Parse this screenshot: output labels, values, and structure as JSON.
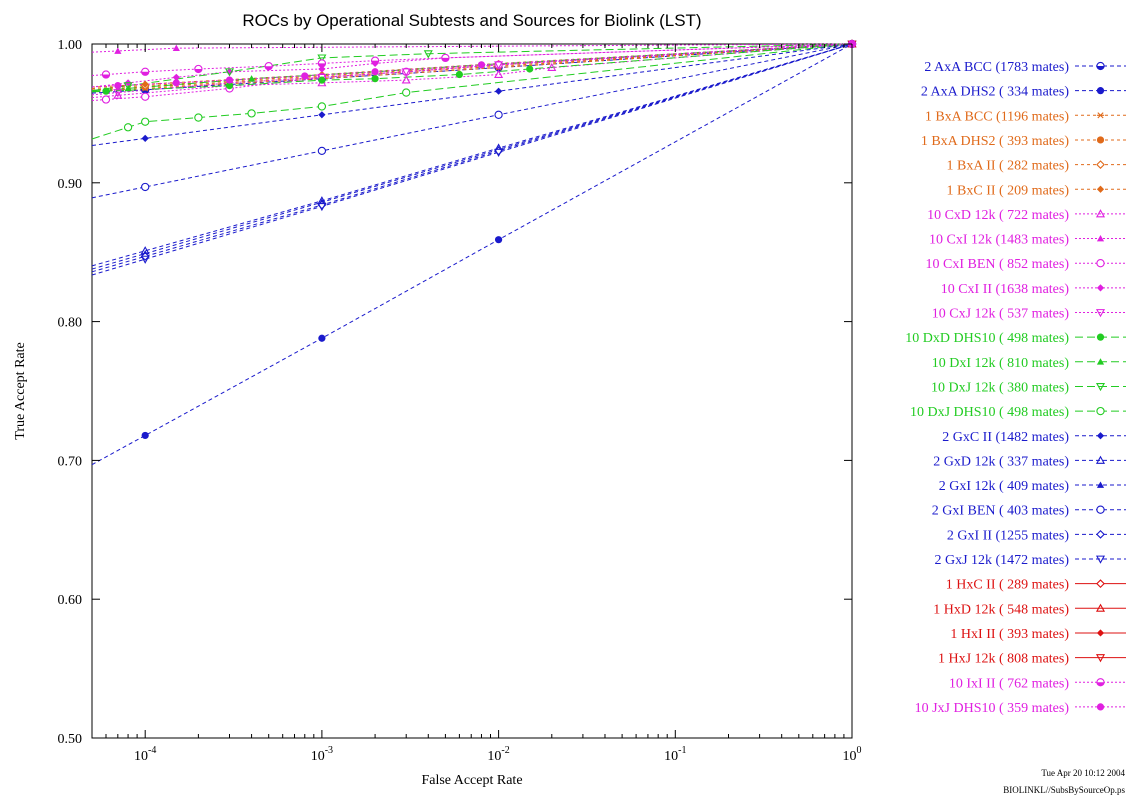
{
  "chart_data": {
    "type": "line",
    "title": "ROCs by Operational Subtests and Sources for Biolink (LST)",
    "xlabel": "False Accept Rate",
    "ylabel": "True Accept Rate",
    "xscale": "log",
    "xlim": [
      5e-05,
      1
    ],
    "ylim": [
      0.5,
      1.0
    ],
    "x_ticks": [
      {
        "base": "10",
        "exp": "-4",
        "value": 0.0001
      },
      {
        "base": "10",
        "exp": "-3",
        "value": 0.001
      },
      {
        "base": "10",
        "exp": "-2",
        "value": 0.01
      },
      {
        "base": "10",
        "exp": "-1",
        "value": 0.1
      },
      {
        "base": "10",
        "exp": "0",
        "value": 1
      }
    ],
    "y_ticks": [
      "0.50",
      "0.60",
      "0.70",
      "0.80",
      "0.90",
      "1.00"
    ],
    "y_tick_values": [
      0.5,
      0.6,
      0.7,
      0.8,
      0.9,
      1.0
    ],
    "legend_position": "right",
    "series": [
      {
        "name": "2 AxA BCC (1783 mates)",
        "color": "#1a1acc",
        "marker": "circle-half",
        "dash": "4,3",
        "x": [
          0.0001,
          0.001,
          0.01,
          1
        ],
        "y": [
          0.967,
          0.975,
          0.983,
          1.0
        ]
      },
      {
        "name": "2 AxA DHS2 ( 334 mates)",
        "color": "#1a1acc",
        "marker": "circle-filled",
        "dash": "4,3",
        "x": [
          0.0001,
          0.001,
          0.01,
          1
        ],
        "y": [
          0.718,
          0.788,
          0.859,
          1.0
        ]
      },
      {
        "name": "1 BxA BCC (1196 mates)",
        "color": "#e06a1a",
        "marker": "star",
        "dash": "3,3",
        "x": [
          0.0001,
          0.001,
          0.01,
          1
        ],
        "y": [
          0.968,
          0.975,
          0.983,
          1.0
        ]
      },
      {
        "name": "1 BxA DHS2 ( 393 mates)",
        "color": "#e06a1a",
        "marker": "circle-filled",
        "dash": "3,3",
        "x": [
          0.0001,
          0.001,
          0.01,
          1
        ],
        "y": [
          0.969,
          0.976,
          0.984,
          1.0
        ]
      },
      {
        "name": "1 BxA II ( 282 mates)",
        "color": "#e06a1a",
        "marker": "diamond-open",
        "dash": "3,3",
        "x": [
          0.0001,
          0.001,
          0.01,
          1
        ],
        "y": [
          0.97,
          0.977,
          0.985,
          1.0
        ]
      },
      {
        "name": "1 BxC II ( 209 mates)",
        "color": "#e06a1a",
        "marker": "diamond-filled",
        "dash": "3,3",
        "x": [
          0.0001,
          0.001,
          0.01,
          1
        ],
        "y": [
          0.971,
          0.978,
          0.986,
          1.0
        ]
      },
      {
        "name": "10 CxD 12k ( 722 mates)",
        "color": "#e020e0",
        "marker": "triangle-open",
        "dash": "2,2",
        "x": [
          7e-05,
          0.0003,
          0.001,
          0.003,
          0.01,
          0.02,
          1
        ],
        "y": [
          0.963,
          0.97,
          0.972,
          0.974,
          0.978,
          0.983,
          1.0
        ]
      },
      {
        "name": "10 CxI 12k (1483 mates)",
        "color": "#e020e0",
        "marker": "triangle-filled",
        "dash": "2,2",
        "x": [
          7e-05,
          0.00015,
          1
        ],
        "y": [
          0.995,
          0.997,
          1.0
        ]
      },
      {
        "name": "10 CxI BEN ( 852 mates)",
        "color": "#e020e0",
        "marker": "circle-open",
        "dash": "2,2",
        "x": [
          6e-05,
          0.0001,
          0.0003,
          0.001,
          0.003,
          0.01,
          1
        ],
        "y": [
          0.96,
          0.962,
          0.968,
          0.976,
          0.98,
          0.985,
          1.0
        ]
      },
      {
        "name": "10 CxI II (1638 mates)",
        "color": "#e020e0",
        "marker": "diamond-filled",
        "dash": "2,2",
        "x": [
          8e-05,
          0.00015,
          0.0003,
          0.001,
          0.002,
          0.005,
          1
        ],
        "y": [
          0.972,
          0.976,
          0.98,
          0.982,
          0.986,
          0.99,
          1.0
        ]
      },
      {
        "name": "10 CxJ 12k ( 537 mates)",
        "color": "#e020e0",
        "marker": "triangle-down-open",
        "dash": "2,2",
        "x": [
          7e-05,
          0.0003,
          0.001,
          0.003,
          0.01,
          1
        ],
        "y": [
          0.965,
          0.972,
          0.976,
          0.98,
          0.985,
          1.0
        ]
      },
      {
        "name": "10 DxD DHS10 ( 498 mates)",
        "color": "#22cc22",
        "marker": "circle-filled",
        "dash": "8,4",
        "x": [
          6e-05,
          0.0003,
          0.001,
          0.002,
          0.006,
          0.015,
          1
        ],
        "y": [
          0.966,
          0.97,
          0.974,
          0.975,
          0.978,
          0.982,
          1.0
        ]
      },
      {
        "name": "10 DxI 12k ( 810 mates)",
        "color": "#22cc22",
        "marker": "triangle-filled",
        "dash": "8,4",
        "x": [
          8e-05,
          0.0004,
          0.002,
          0.008,
          1
        ],
        "y": [
          0.968,
          0.975,
          0.98,
          0.985,
          1.0
        ]
      },
      {
        "name": "10 DxJ 12k ( 380 mates)",
        "color": "#22cc22",
        "marker": "triangle-down-open",
        "dash": "8,4",
        "x": [
          8e-05,
          0.0003,
          0.001,
          0.004,
          1
        ],
        "y": [
          0.97,
          0.98,
          0.99,
          0.993,
          1.0
        ]
      },
      {
        "name": "10 DxJ DHS10 ( 498 mates)",
        "color": "#22cc22",
        "marker": "circle-open",
        "dash": "8,4",
        "x": [
          8e-05,
          0.0001,
          0.0002,
          0.0004,
          0.001,
          0.003,
          1
        ],
        "y": [
          0.94,
          0.944,
          0.947,
          0.95,
          0.955,
          0.965,
          1.0
        ]
      },
      {
        "name": "2 GxC II (1482 mates)",
        "color": "#1a1acc",
        "marker": "diamond-filled",
        "dash": "4,3",
        "x": [
          0.0001,
          0.001,
          0.01,
          1
        ],
        "y": [
          0.932,
          0.949,
          0.966,
          1.0
        ]
      },
      {
        "name": "2 GxD 12k ( 337 mates)",
        "color": "#1a1acc",
        "marker": "triangle-open",
        "dash": "4,3",
        "x": [
          0.0001,
          0.001,
          0.01,
          1
        ],
        "y": [
          0.851,
          0.887,
          0.925,
          1.0
        ]
      },
      {
        "name": "2 GxI 12k ( 409 mates)",
        "color": "#1a1acc",
        "marker": "triangle-filled",
        "dash": "4,3",
        "x": [
          0.0001,
          0.001,
          0.01,
          1
        ],
        "y": [
          0.849,
          0.886,
          0.924,
          1.0
        ]
      },
      {
        "name": "2 GxI BEN ( 403 mates)",
        "color": "#1a1acc",
        "marker": "circle-open",
        "dash": "4,3",
        "x": [
          0.0001,
          0.001,
          0.01,
          1
        ],
        "y": [
          0.897,
          0.923,
          0.949,
          1.0
        ]
      },
      {
        "name": "2 GxI II (1255 mates)",
        "color": "#1a1acc",
        "marker": "diamond-open",
        "dash": "4,3",
        "x": [
          0.0001,
          0.001,
          0.01,
          1
        ],
        "y": [
          0.847,
          0.884,
          0.923,
          1.0
        ]
      },
      {
        "name": "2 GxJ 12k (1472 mates)",
        "color": "#1a1acc",
        "marker": "triangle-down-open",
        "dash": "4,3",
        "x": [
          0.0001,
          0.001,
          0.01,
          1
        ],
        "y": [
          0.845,
          0.883,
          0.922,
          1.0
        ]
      },
      {
        "name": "1 HxC II ( 289 mates)",
        "color": "#dd1111",
        "marker": "diamond-open",
        "dash": "",
        "x": [
          1
        ],
        "y": [
          1.0
        ]
      },
      {
        "name": "1 HxD 12k ( 548 mates)",
        "color": "#dd1111",
        "marker": "triangle-open",
        "dash": "",
        "x": [
          1
        ],
        "y": [
          1.0
        ]
      },
      {
        "name": "1 HxI II ( 393 mates)",
        "color": "#dd1111",
        "marker": "diamond-filled",
        "dash": "",
        "x": [
          1
        ],
        "y": [
          1.0
        ]
      },
      {
        "name": "1 HxJ 12k ( 808 mates)",
        "color": "#dd1111",
        "marker": "triangle-down-open",
        "dash": "",
        "x": [
          1
        ],
        "y": [
          1.0
        ]
      },
      {
        "name": "10 IxI II ( 762 mates)",
        "color": "#e020e0",
        "marker": "circle-half",
        "dash": "2,2",
        "x": [
          6e-05,
          0.0001,
          0.0002,
          0.0005,
          0.001,
          0.002,
          0.005,
          1
        ],
        "y": [
          0.978,
          0.98,
          0.982,
          0.984,
          0.986,
          0.988,
          0.99,
          1.0
        ]
      },
      {
        "name": "10 JxJ DHS10 ( 359 mates)",
        "color": "#e020e0",
        "marker": "circle-filled",
        "dash": "2,2",
        "x": [
          7e-05,
          0.00015,
          0.0003,
          0.0008,
          0.002,
          0.008,
          1
        ],
        "y": [
          0.97,
          0.972,
          0.974,
          0.977,
          0.98,
          0.985,
          1.0
        ]
      }
    ]
  },
  "footer": {
    "date": "Tue Apr 20 10:12 2004",
    "file": "BIOLINKL//SubsBySourceOp.ps"
  }
}
